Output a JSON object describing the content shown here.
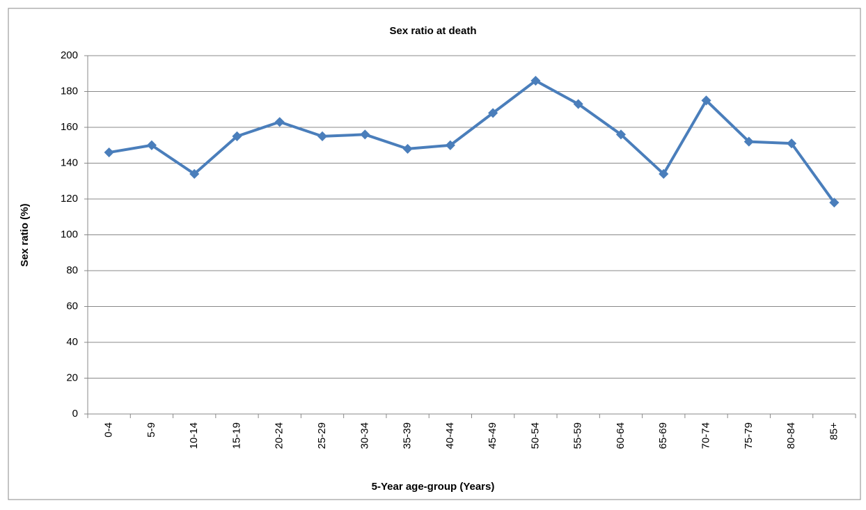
{
  "chart_data": {
    "type": "line",
    "title": "Sex ratio at death",
    "x_label": "5-Year age-group  (Years)",
    "y_label": "Sex ratio (%)",
    "categories": [
      "0-4",
      "5-9",
      "10-14",
      "15-19",
      "20-24",
      "25-29",
      "30-34",
      "35-39",
      "40-44",
      "45-49",
      "50-54",
      "55-59",
      "60-64",
      "65-69",
      "70-74",
      "75-79",
      "80-84",
      "85+"
    ],
    "values": [
      146,
      150,
      134,
      155,
      163,
      155,
      156,
      148,
      150,
      168,
      186,
      173,
      156,
      134,
      175,
      152,
      151,
      118
    ],
    "color": "#4a7ebb",
    "ylim": [
      0,
      200
    ],
    "yticks": [
      0,
      20,
      40,
      60,
      80,
      100,
      120,
      140,
      160,
      180,
      200
    ],
    "grid": true
  }
}
